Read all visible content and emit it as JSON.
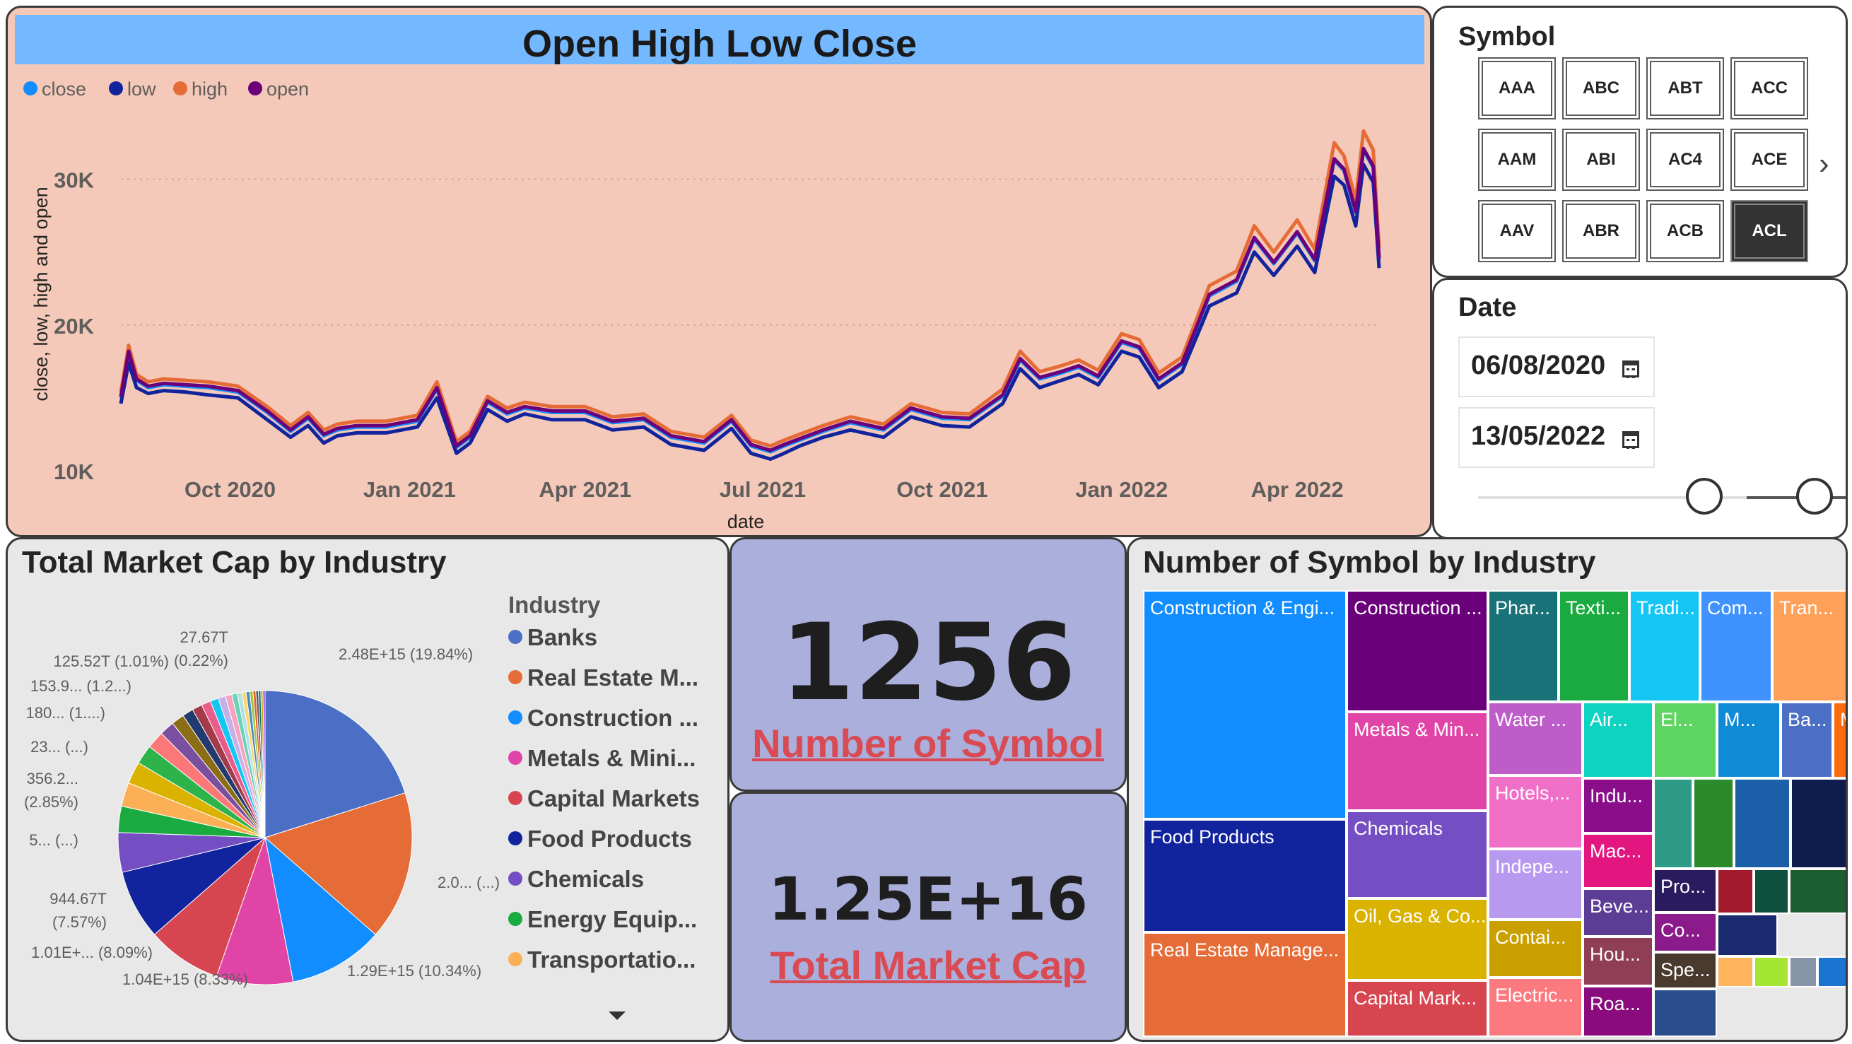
{
  "ohlc": {
    "title": "Open High Low Close",
    "legend": [
      {
        "name": "close",
        "color": "#118dff"
      },
      {
        "name": "low",
        "color": "#12239e"
      },
      {
        "name": "high",
        "color": "#e66c37"
      },
      {
        "name": "open",
        "color": "#6b007b"
      }
    ]
  },
  "chart_data": [
    {
      "type": "line",
      "xlabel": "date",
      "ylabel": "close, low, high and open",
      "x_range": [
        "2020-08-06",
        "2022-05-13"
      ],
      "ylim": [
        10000,
        34000
      ],
      "y_ticks": [
        "10K",
        "20K",
        "30K"
      ],
      "x_ticks": [
        "Oct 2020",
        "Jan 2021",
        "Apr 2021",
        "Jul 2021",
        "Oct 2021",
        "Jan 2022",
        "Apr 2022"
      ],
      "grid": true,
      "legend_position": "top-left",
      "x": [
        "2020-08-06",
        "2020-08-10",
        "2020-08-14",
        "2020-08-20",
        "2020-08-28",
        "2020-09-08",
        "2020-09-20",
        "2020-10-05",
        "2020-10-20",
        "2020-11-01",
        "2020-11-10",
        "2020-11-18",
        "2020-11-25",
        "2020-12-05",
        "2020-12-20",
        "2021-01-05",
        "2021-01-15",
        "2021-01-25",
        "2021-02-01",
        "2021-02-10",
        "2021-02-20",
        "2021-03-01",
        "2021-03-15",
        "2021-04-01",
        "2021-04-15",
        "2021-05-01",
        "2021-05-15",
        "2021-06-01",
        "2021-06-15",
        "2021-06-25",
        "2021-07-05",
        "2021-07-12",
        "2021-07-20",
        "2021-08-01",
        "2021-08-15",
        "2021-09-01",
        "2021-09-15",
        "2021-10-01",
        "2021-10-15",
        "2021-11-01",
        "2021-11-10",
        "2021-11-20",
        "2021-12-01",
        "2021-12-10",
        "2021-12-20",
        "2022-01-01",
        "2022-01-10",
        "2022-01-20",
        "2022-02-01",
        "2022-02-15",
        "2022-03-01",
        "2022-03-10",
        "2022-03-20",
        "2022-04-01",
        "2022-04-10",
        "2022-04-20",
        "2022-04-25",
        "2022-05-01",
        "2022-05-05",
        "2022-05-10",
        "2022-05-13"
      ],
      "series": [
        {
          "name": "close",
          "values": [
            15000,
            18000,
            16200,
            15700,
            15900,
            15800,
            15700,
            15400,
            14000,
            12700,
            13600,
            12400,
            12800,
            13000,
            13000,
            13400,
            15600,
            11600,
            12300,
            14700,
            13900,
            14300,
            14000,
            14000,
            13300,
            13500,
            12300,
            11900,
            13400,
            11700,
            11300,
            11700,
            12100,
            12700,
            13300,
            12800,
            14200,
            13600,
            13500,
            15100,
            17600,
            16300,
            16700,
            17100,
            16400,
            18800,
            18400,
            16200,
            17300,
            22000,
            23000,
            25900,
            24200,
            26300,
            24400,
            31300,
            30600,
            27700,
            32000,
            30800,
            24500
          ]
        },
        {
          "name": "low",
          "values": [
            14600,
            17400,
            15700,
            15300,
            15500,
            15400,
            15200,
            15000,
            13500,
            12300,
            13100,
            11900,
            12400,
            12600,
            12600,
            13000,
            15000,
            11200,
            11900,
            14200,
            13400,
            13900,
            13500,
            13500,
            12800,
            13000,
            11800,
            11400,
            12900,
            11200,
            10800,
            11200,
            11700,
            12300,
            12800,
            12300,
            13700,
            13100,
            13000,
            14600,
            17000,
            15700,
            16200,
            16600,
            15900,
            18200,
            17800,
            15700,
            16800,
            21300,
            22200,
            25000,
            23400,
            25400,
            23600,
            30200,
            29600,
            26800,
            31000,
            29800,
            23900
          ]
        },
        {
          "name": "high",
          "values": [
            15400,
            18600,
            16600,
            16100,
            16300,
            16200,
            16100,
            15800,
            14400,
            13100,
            14000,
            12800,
            13200,
            13400,
            13400,
            13800,
            16100,
            12000,
            12700,
            15100,
            14300,
            14700,
            14400,
            14400,
            13700,
            13900,
            12700,
            12300,
            13800,
            12100,
            11700,
            12100,
            12500,
            13100,
            13700,
            13200,
            14600,
            14000,
            13900,
            15600,
            18200,
            16800,
            17200,
            17600,
            16900,
            19400,
            19000,
            16700,
            17800,
            22700,
            23700,
            26800,
            25000,
            27200,
            25200,
            32500,
            31600,
            28600,
            33300,
            32000,
            25300
          ]
        },
        {
          "name": "open",
          "values": [
            15100,
            18200,
            16300,
            15800,
            16000,
            15900,
            15800,
            15500,
            14100,
            12800,
            13700,
            12500,
            12900,
            13100,
            13100,
            13500,
            15700,
            11700,
            12400,
            14800,
            14000,
            14400,
            14100,
            14100,
            13400,
            13600,
            12400,
            12000,
            13500,
            11800,
            11400,
            11800,
            12200,
            12800,
            13400,
            12900,
            14300,
            13700,
            13600,
            15200,
            17700,
            16400,
            16800,
            17200,
            16500,
            18900,
            18500,
            16300,
            17400,
            22100,
            23100,
            26000,
            24300,
            26400,
            24500,
            31400,
            30700,
            27800,
            32100,
            30900,
            24600
          ]
        }
      ]
    },
    {
      "type": "pie",
      "title": "Total Market Cap by Industry",
      "legend_title": "Industry",
      "legend_position": "right",
      "slices": [
        {
          "name": "Banks",
          "value": 19.84,
          "color": "#4a6fc4"
        },
        {
          "name": "Real Estate M...",
          "value": 16.2,
          "color": "#e66c37"
        },
        {
          "name": "Construction ...",
          "value": 10.34,
          "color": "#118dff"
        },
        {
          "name": "Metals & Mini...",
          "value": 8.33,
          "color": "#e044a7"
        },
        {
          "name": "Capital Markets",
          "value": 8.09,
          "color": "#d64550"
        },
        {
          "name": "Food Products",
          "value": 7.57,
          "color": "#12239e"
        },
        {
          "name": "Chemicals",
          "value": 4.3,
          "color": "#744ec2"
        },
        {
          "name": "Energy Equip...",
          "value": 2.85,
          "color": "#1aab40"
        },
        {
          "name": "Transportatio...",
          "value": 2.6,
          "color": "#fcb056"
        },
        {
          "name": "",
          "value": 2.4,
          "color": "#d9b300"
        },
        {
          "name": "",
          "value": 2.1,
          "color": "#2db34a"
        },
        {
          "name": "",
          "value": 1.9,
          "color": "#fc7878"
        },
        {
          "name": "",
          "value": 1.6,
          "color": "#7a4f9e"
        },
        {
          "name": "",
          "value": 1.4,
          "color": "#8b6d18"
        },
        {
          "name": "",
          "value": 1.2,
          "color": "#223a6e"
        },
        {
          "name": "",
          "value": 1.1,
          "color": "#a43b4a"
        },
        {
          "name": "",
          "value": 1.01,
          "color": "#e85d8b"
        },
        {
          "name": "",
          "value": 0.9,
          "color": "#15c6f4"
        },
        {
          "name": "",
          "value": 0.8,
          "color": "#c6b1e6"
        },
        {
          "name": "",
          "value": 0.7,
          "color": "#f9a3c2"
        },
        {
          "name": "",
          "value": 0.6,
          "color": "#6ed2b4"
        },
        {
          "name": "",
          "value": 0.5,
          "color": "#b0e0e6"
        },
        {
          "name": "",
          "value": 0.45,
          "color": "#ffd56b"
        },
        {
          "name": "",
          "value": 0.4,
          "color": "#4b8bbe"
        },
        {
          "name": "",
          "value": 0.35,
          "color": "#9ac83e"
        },
        {
          "name": "",
          "value": 0.3,
          "color": "#e95b2b"
        },
        {
          "name": "",
          "value": 0.28,
          "color": "#5a5a5a"
        },
        {
          "name": "",
          "value": 0.26,
          "color": "#0f766e"
        },
        {
          "name": "",
          "value": 0.24,
          "color": "#d0a020"
        },
        {
          "name": "",
          "value": 0.22,
          "color": "#8a2be2"
        }
      ],
      "data_labels": [
        {
          "text": "2.48E+15 (19.84%)"
        },
        {
          "text": "2.0... (...)"
        },
        {
          "text": "1.29E+15 (10.34%)"
        },
        {
          "text": "1.04E+15 (8.33%)"
        },
        {
          "text": "1.01E+... (8.09%)"
        },
        {
          "text": "944.67T\n(7.57%)"
        },
        {
          "text": "5... (...)"
        },
        {
          "text": "356.2...\n(2.85%)"
        },
        {
          "text": "23... (...)"
        },
        {
          "text": "180... (1....)"
        },
        {
          "text": "153.9... (1.2...)"
        },
        {
          "text": "125.52T (1.01%)"
        },
        {
          "text": "27.67T\n(0.22%)"
        }
      ]
    }
  ],
  "symbol_slicer": {
    "title": "Symbol",
    "buttons": [
      "AAA",
      "ABC",
      "ABT",
      "ACC",
      "AAM",
      "ABI",
      "AC4",
      "ACE",
      "AAV",
      "ABR",
      "ACB",
      "ACL"
    ],
    "selected": "ACL",
    "next_icon": "chevron-right-icon"
  },
  "date_slicer": {
    "title": "Date",
    "start": "06/08/2020",
    "end": "13/05/2022",
    "icon": "calendar-icon"
  },
  "cards": {
    "symbols": {
      "value": "1256",
      "label": "Number of Symbol"
    },
    "market_cap": {
      "value": "1.25E+16",
      "label": "Total Market Cap"
    }
  },
  "treemap": {
    "title": "Number of Symbol by Industry",
    "tiles": [
      {
        "label": "Construction & Engi...",
        "color": "#118dff"
      },
      {
        "label": "Food Products",
        "color": "#12239e"
      },
      {
        "label": "Real Estate Manage...",
        "color": "#e66c37"
      },
      {
        "label": "Construction ...",
        "color": "#6b007b"
      },
      {
        "label": "Metals & Min...",
        "color": "#e044a7"
      },
      {
        "label": "Chemicals",
        "color": "#744ec2"
      },
      {
        "label": "Oil, Gas & Co...",
        "color": "#d9b300"
      },
      {
        "label": "Capital Mark...",
        "color": "#d64550"
      },
      {
        "label": "Phar...",
        "color": "#197278"
      },
      {
        "label": "Texti...",
        "color": "#1aab40"
      },
      {
        "label": "Tradi...",
        "color": "#15c6f4"
      },
      {
        "label": "Com...",
        "color": "#4092ff"
      },
      {
        "label": "Tran...",
        "color": "#ffa058"
      },
      {
        "label": "Water ...",
        "color": "#be5dc9"
      },
      {
        "label": "Air...",
        "color": "#0cd3c2"
      },
      {
        "label": "El...",
        "color": "#5ed561"
      },
      {
        "label": "M...",
        "color": "#0e8ad6"
      },
      {
        "label": "Ba...",
        "color": "#4a6fc4"
      },
      {
        "label": "M...",
        "color": "#fc6a0f"
      },
      {
        "label": "Hotels,...",
        "color": "#f070c8"
      },
      {
        "label": "Indu...",
        "color": "#8a0e8a"
      },
      {
        "label": "Indepe...",
        "color": "#b79af0"
      },
      {
        "label": "Mac...",
        "color": "#e3157f"
      },
      {
        "label": "Contai...",
        "color": "#c9a000"
      },
      {
        "label": "Beve...",
        "color": "#5c3d95"
      },
      {
        "label": "Hou...",
        "color": "#8f3e56"
      },
      {
        "label": "Electric...",
        "color": "#fb7a80"
      },
      {
        "label": "Roa...",
        "color": "#8a0c7c"
      },
      {
        "label": "Pro...",
        "color": "#2a1a5e"
      },
      {
        "label": "Co...",
        "color": "#8b1a8a"
      },
      {
        "label": "Spe...",
        "color": "#4a3a2e"
      },
      {
        "label": "",
        "color": "#2d9b85"
      },
      {
        "label": "",
        "color": "#2b8a2b"
      },
      {
        "label": "",
        "color": "#1a5fa8"
      },
      {
        "label": "",
        "color": "#0f1d4e"
      },
      {
        "label": "",
        "color": "#a01a2c"
      },
      {
        "label": "",
        "color": "#0f4f3e"
      },
      {
        "label": "",
        "color": "#1b5e2f"
      },
      {
        "label": "",
        "color": "#1a2a6e"
      },
      {
        "label": "",
        "color": "#ffb35c"
      },
      {
        "label": "",
        "color": "#a5e635"
      },
      {
        "label": "",
        "color": "#8795a8"
      },
      {
        "label": "",
        "color": "#1a75d1"
      },
      {
        "label": "",
        "color": "#2a4e8c"
      }
    ]
  }
}
